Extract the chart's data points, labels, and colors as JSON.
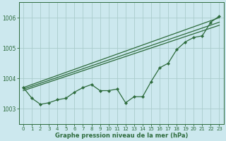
{
  "xlabel": "Graphe pression niveau de la mer (hPa)",
  "xlim": [
    -0.5,
    23.5
  ],
  "ylim": [
    1002.5,
    1006.5
  ],
  "yticks": [
    1003,
    1004,
    1005,
    1006
  ],
  "xticks": [
    0,
    1,
    2,
    3,
    4,
    5,
    6,
    7,
    8,
    9,
    10,
    11,
    12,
    13,
    14,
    15,
    16,
    17,
    18,
    19,
    20,
    21,
    22,
    23
  ],
  "background_color": "#cce8ee",
  "grid_color": "#aacccc",
  "line_color": "#2d6b3c",
  "straight_lines": [
    [
      [
        0,
        23
      ],
      [
        1003.7,
        1006.0
      ]
    ],
    [
      [
        0,
        23
      ],
      [
        1003.65,
        1005.85
      ]
    ],
    [
      [
        0,
        23
      ],
      [
        1003.6,
        1005.75
      ]
    ]
  ],
  "data_series": [
    1003.7,
    1003.35,
    1003.15,
    1003.2,
    1003.3,
    1003.35,
    1003.55,
    1003.7,
    1003.8,
    1003.6,
    1003.6,
    1003.65,
    1003.2,
    1003.4,
    1003.4,
    1003.9,
    1004.35,
    1004.5,
    1004.95,
    1005.2,
    1005.35,
    1005.4,
    1005.85,
    1006.05
  ],
  "tick_fontsize": 5,
  "xlabel_fontsize": 6
}
